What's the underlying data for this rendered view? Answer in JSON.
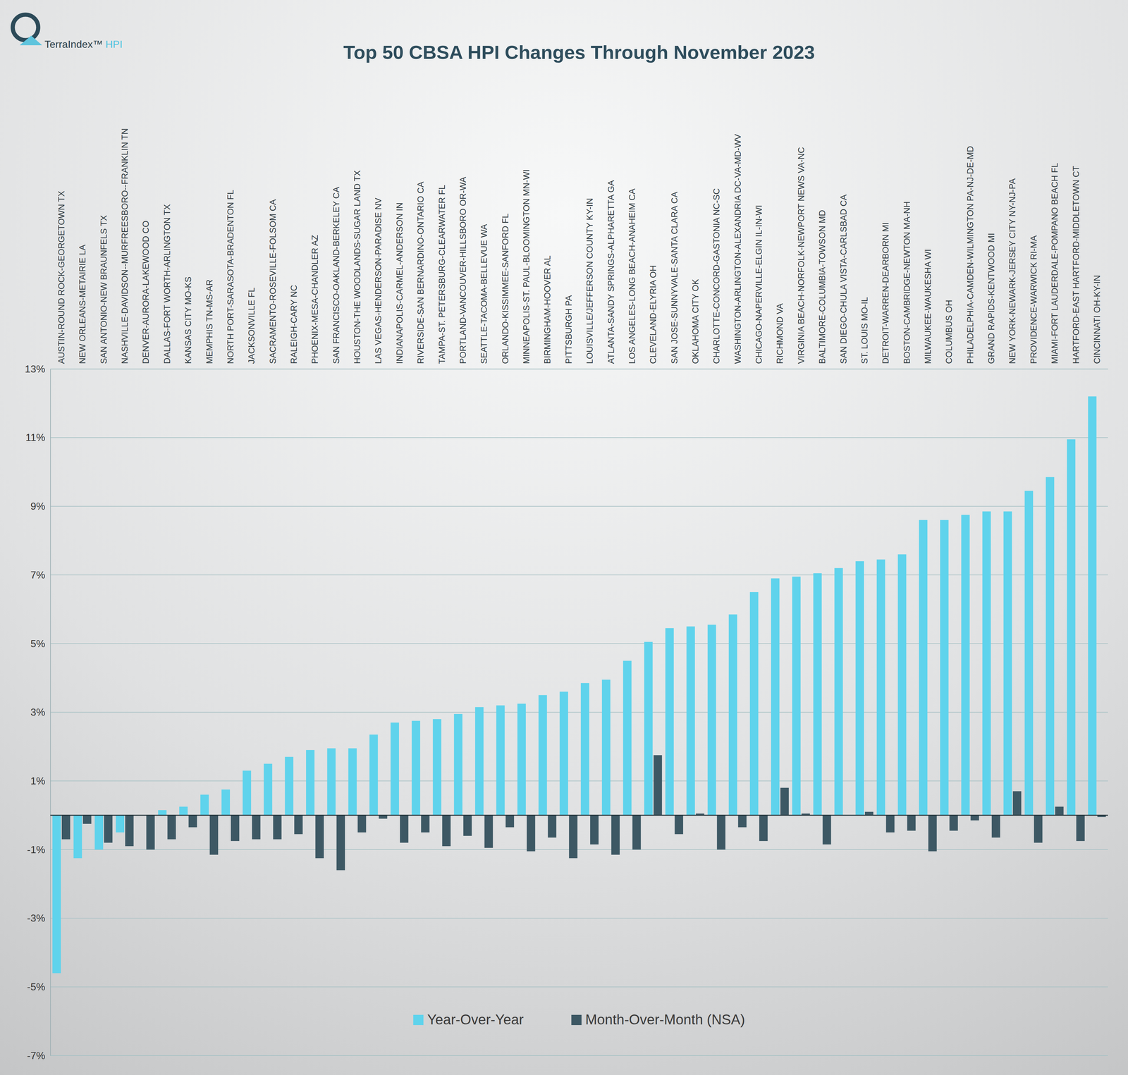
{
  "logo": [
    "TerraIndex™",
    "HPI"
  ],
  "chart_data": {
    "type": "bar",
    "title": "Top 50 CBSA HPI Changes Through November 2023",
    "categories": [
      "AUSTIN-ROUND ROCK-GEORGETOWN TX",
      "NEW ORLEANS-METAIRIE LA",
      "SAN ANTONIO-NEW BRAUNFELS TX",
      "NASHVILLE-DAVIDSON--MURFREESBORO--FRANKLIN TN",
      "DENVER-AURORA-LAKEWOOD CO",
      "DALLAS-FORT WORTH-ARLINGTON TX",
      "KANSAS CITY MO-KS",
      "MEMPHIS TN-MS-AR",
      "NORTH PORT-SARASOTA-BRADENTON FL",
      "JACKSONVILLE FL",
      "SACRAMENTO-ROSEVILLE-FOLSOM CA",
      "RALEIGH-CARY NC",
      "PHOENIX-MESA-CHANDLER AZ",
      "SAN FRANCISCO-OAKLAND-BERKELEY CA",
      "HOUSTON-THE WOODLANDS-SUGAR LAND TX",
      "LAS VEGAS-HENDERSON-PARADISE NV",
      "INDIANAPOLIS-CARMEL-ANDERSON IN",
      "RIVERSIDE-SAN BERNARDINO-ONTARIO CA",
      "TAMPA-ST. PETERSBURG-CLEARWATER FL",
      "PORTLAND-VANCOUVER-HILLSBORO OR-WA",
      "SEATTLE-TACOMA-BELLEVUE WA",
      "ORLANDO-KISSIMMEE-SANFORD FL",
      "MINNEAPOLIS-ST. PAUL-BLOOMINGTON MN-WI",
      "BIRMINGHAM-HOOVER AL",
      "PITTSBURGH PA",
      "LOUISVILLE/JEFFERSON COUNTY KY-IN",
      "ATLANTA-SANDY SPRINGS-ALPHARETTA GA",
      "LOS ANGELES-LONG BEACH-ANAHEIM CA",
      "CLEVELAND-ELYRIA OH",
      "SAN JOSE-SUNNYVALE-SANTA CLARA CA",
      "OKLAHOMA CITY OK",
      "CHARLOTTE-CONCORD-GASTONIA NC-SC",
      "WASHINGTON-ARLINGTON-ALEXANDRIA DC-VA-MD-WV",
      "CHICAGO-NAPERVILLE-ELGIN IL-IN-WI",
      "RICHMOND VA",
      "VIRGINIA BEACH-NORFOLK-NEWPORT NEWS VA-NC",
      "BALTIMORE-COLUMBIA-TOWSON MD",
      "SAN DIEGO-CHULA VISTA-CARLSBAD CA",
      "ST. LOUIS MO-IL",
      "DETROIT-WARREN-DEARBORN MI",
      "BOSTON-CAMBRIDGE-NEWTON MA-NH",
      "MILWAUKEE-WAUKESHA WI",
      "COLUMBUS OH",
      "PHILADELPHIA-CAMDEN-WILMINGTON PA-NJ-DE-MD",
      "GRAND RAPIDS-KENTWOOD MI",
      "NEW YORK-NEWARK-JERSEY CITY NY-NJ-PA",
      "PROVIDENCE-WARWICK RI-MA",
      "MIAMI-FORT LAUDERDALE-POMPANO BEACH FL",
      "HARTFORD-EAST HARTFORD-MIDDLETOWN CT",
      "CINCINNATI OH-KY-IN"
    ],
    "series": [
      {
        "name": "Year-Over-Year",
        "color": "#5fd3ec",
        "values": [
          -4.6,
          -1.25,
          -1.0,
          -0.5,
          0.0,
          0.15,
          0.25,
          0.6,
          0.75,
          1.3,
          1.5,
          1.7,
          1.9,
          1.95,
          1.95,
          2.35,
          2.7,
          2.75,
          2.8,
          2.95,
          3.15,
          3.2,
          3.25,
          3.5,
          3.6,
          3.85,
          3.95,
          4.5,
          5.05,
          5.45,
          5.5,
          5.55,
          5.85,
          6.5,
          6.9,
          6.95,
          7.05,
          7.2,
          7.4,
          7.45,
          7.6,
          8.6,
          8.6,
          8.75,
          8.85,
          8.85,
          9.45,
          9.85,
          10.95,
          12.2
        ]
      },
      {
        "name": "Month-Over-Month (NSA)",
        "color": "#3d5864",
        "values": [
          -0.7,
          -0.25,
          -0.8,
          -0.9,
          -1.0,
          -0.7,
          -0.35,
          -1.15,
          -0.75,
          -0.7,
          -0.7,
          -0.55,
          -1.25,
          -1.6,
          -0.5,
          -0.1,
          -0.8,
          -0.5,
          -0.9,
          -0.6,
          -0.95,
          -0.35,
          -1.05,
          -0.65,
          -1.25,
          -0.85,
          -1.15,
          -1.0,
          1.75,
          -0.55,
          0.05,
          -1.0,
          -0.35,
          -0.75,
          0.8,
          0.05,
          -0.85,
          0.0,
          0.1,
          -0.5,
          -0.45,
          -1.05,
          -0.45,
          -0.15,
          -0.65,
          0.7,
          -0.8,
          0.25,
          -0.75,
          -0.05
        ]
      }
    ],
    "ylim": [
      -7,
      13
    ],
    "yticks": [
      {
        "value": -7,
        "label": "-7%"
      },
      {
        "value": -5,
        "label": "-5%"
      },
      {
        "value": -3,
        "label": "-3%"
      },
      {
        "value": -1,
        "label": "-1%"
      },
      {
        "value": 1,
        "label": "1%"
      },
      {
        "value": 3,
        "label": "3%"
      },
      {
        "value": 5,
        "label": "5%"
      },
      {
        "value": 7,
        "label": "7%"
      },
      {
        "value": 9,
        "label": "9%"
      },
      {
        "value": 11,
        "label": "11%"
      },
      {
        "value": 13,
        "label": "13%"
      }
    ],
    "grid": true,
    "legend": "bottom"
  }
}
